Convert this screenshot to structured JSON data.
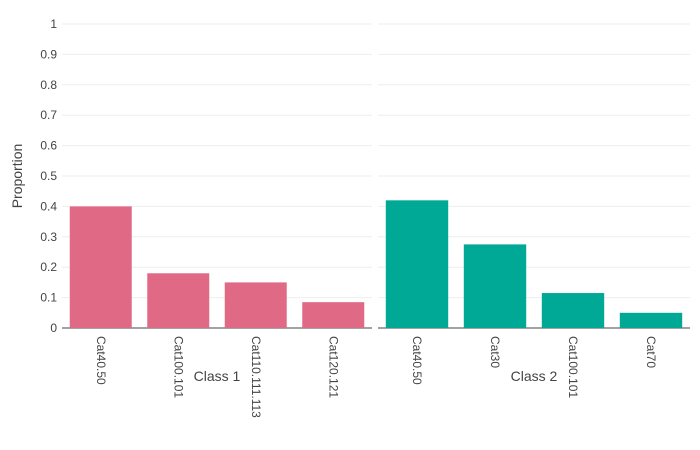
{
  "chart_data": {
    "type": "bar",
    "ylabel": "Proportion",
    "ylim": [
      0,
      1
    ],
    "yticks": [
      "0",
      "0.1",
      "0.2",
      "0.3",
      "0.4",
      "0.5",
      "0.6",
      "0.7",
      "0.8",
      "0.9",
      "1"
    ],
    "grid": true,
    "panels": [
      {
        "xlabel": "Class 1",
        "color": "#e06a86",
        "categories": [
          "Cat40.50",
          "Cat100.101",
          "Cat110.111.113",
          "Cat120.121"
        ],
        "values": [
          0.4,
          0.18,
          0.15,
          0.085
        ]
      },
      {
        "xlabel": "Class 2",
        "color": "#00a896",
        "categories": [
          "Cat40.50",
          "Cat30",
          "Cat100.101",
          "Cat70"
        ],
        "values": [
          0.42,
          0.275,
          0.115,
          0.05
        ]
      }
    ]
  }
}
